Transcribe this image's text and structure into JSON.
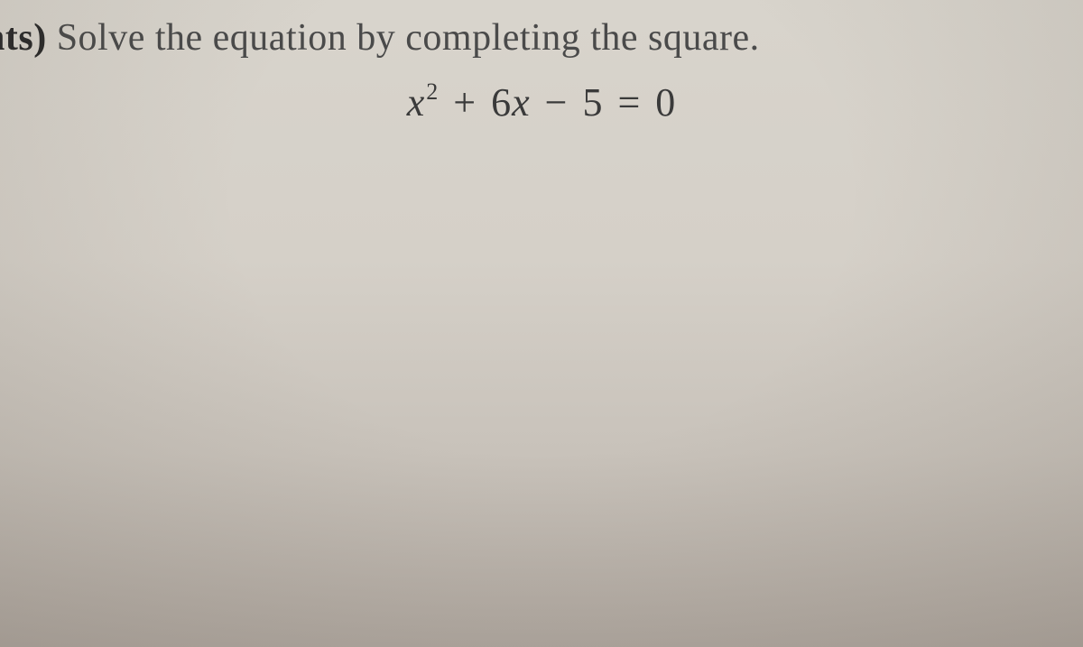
{
  "question": {
    "prefix_fragment": "nts)",
    "instruction": "Solve the equation by completing the square.",
    "equation": {
      "variable": "x",
      "exponent": "2",
      "term2_sign": "+",
      "term2_coef": "6",
      "term2_var": "x",
      "term3_sign": "−",
      "term3_val": "5",
      "equals": "=",
      "rhs": "0"
    }
  },
  "style": {
    "background_gradient_top": "#d8d4cc",
    "background_gradient_bottom": "#b0a8a0",
    "text_color_main": "#4a4a4a",
    "text_color_bold": "#2a2a2a",
    "equation_color": "#3a3a3a",
    "question_fontsize": 42,
    "equation_fontsize": 44,
    "font_family": "Georgia, Times New Roman, serif"
  }
}
